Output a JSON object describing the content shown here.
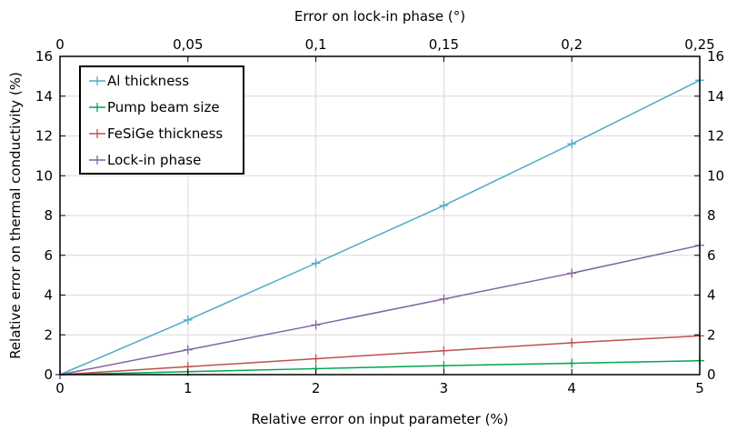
{
  "chart_data": {
    "type": "line",
    "xlabel": "Relative error on input parameter (%)",
    "x2label": "Error on lock-in phase (°)",
    "ylabel": "Relative error on thermal conductivity (%)",
    "xlim": [
      0,
      5
    ],
    "ylim": [
      0,
      16
    ],
    "x_ticks": [
      0,
      1,
      2,
      3,
      4,
      5
    ],
    "x_tick_labels": [
      "0",
      "1",
      "2",
      "3",
      "4",
      "5"
    ],
    "x2_ticks": [
      0,
      1,
      2,
      3,
      4,
      5
    ],
    "x2_tick_labels": [
      "0",
      "0,05",
      "0,1",
      "0,15",
      "0,2",
      "0,25"
    ],
    "y_ticks": [
      0,
      2,
      4,
      6,
      8,
      10,
      12,
      14,
      16
    ],
    "y_tick_labels": [
      "0",
      "2",
      "4",
      "6",
      "8",
      "10",
      "12",
      "14",
      "16"
    ],
    "grid": true,
    "legend_position": "top-left",
    "x": [
      0,
      1,
      2,
      3,
      4,
      5
    ],
    "series": [
      {
        "name": "Al thickness",
        "color": "#4bacc6",
        "values": [
          0,
          2.75,
          5.6,
          8.5,
          11.6,
          14.8
        ]
      },
      {
        "name": "Pump beam size",
        "color": "#00a550",
        "values": [
          0,
          0.15,
          0.3,
          0.45,
          0.57,
          0.7
        ]
      },
      {
        "name": "FeSiGe thickness",
        "color": "#c0504d",
        "values": [
          0,
          0.4,
          0.8,
          1.2,
          1.6,
          1.95
        ]
      },
      {
        "name": "Lock-in phase",
        "color": "#8064a2",
        "values": [
          0,
          1.25,
          2.5,
          3.8,
          5.1,
          6.5
        ]
      }
    ]
  }
}
